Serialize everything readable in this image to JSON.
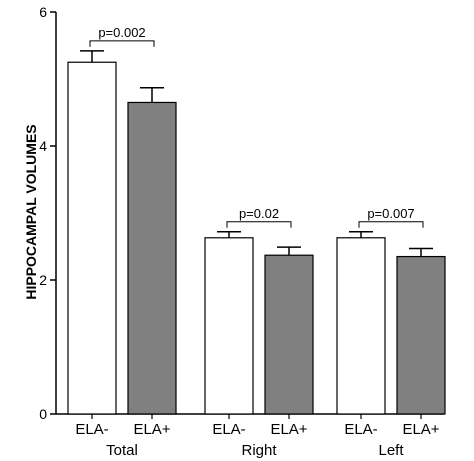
{
  "chart_data": {
    "type": "bar",
    "ylabel": "HIPPOCAMPAL VOLUMES",
    "xlabel": "",
    "title": "",
    "ylim": [
      0,
      6
    ],
    "yticks": [
      "0",
      "2",
      "4",
      "6"
    ],
    "groups": [
      {
        "label": "Total",
        "bars": [
          {
            "category": "ELA-",
            "value": 5.25,
            "error": 0.17,
            "fill": "#ffffff"
          },
          {
            "category": "ELA+",
            "value": 4.65,
            "error": 0.22,
            "fill": "#808080"
          }
        ],
        "pvalue": "p=0.002"
      },
      {
        "label": "Right",
        "bars": [
          {
            "category": "ELA-",
            "value": 2.63,
            "error": 0.09,
            "fill": "#ffffff"
          },
          {
            "category": "ELA+",
            "value": 2.37,
            "error": 0.12,
            "fill": "#808080"
          }
        ],
        "pvalue": "p=0.02"
      },
      {
        "label": "Left",
        "bars": [
          {
            "category": "ELA-",
            "value": 2.63,
            "error": 0.09,
            "fill": "#ffffff"
          },
          {
            "category": "ELA+",
            "value": 2.35,
            "error": 0.12,
            "fill": "#808080"
          }
        ],
        "pvalue": "p=0.007"
      }
    ],
    "grid": false,
    "legend": "none"
  }
}
